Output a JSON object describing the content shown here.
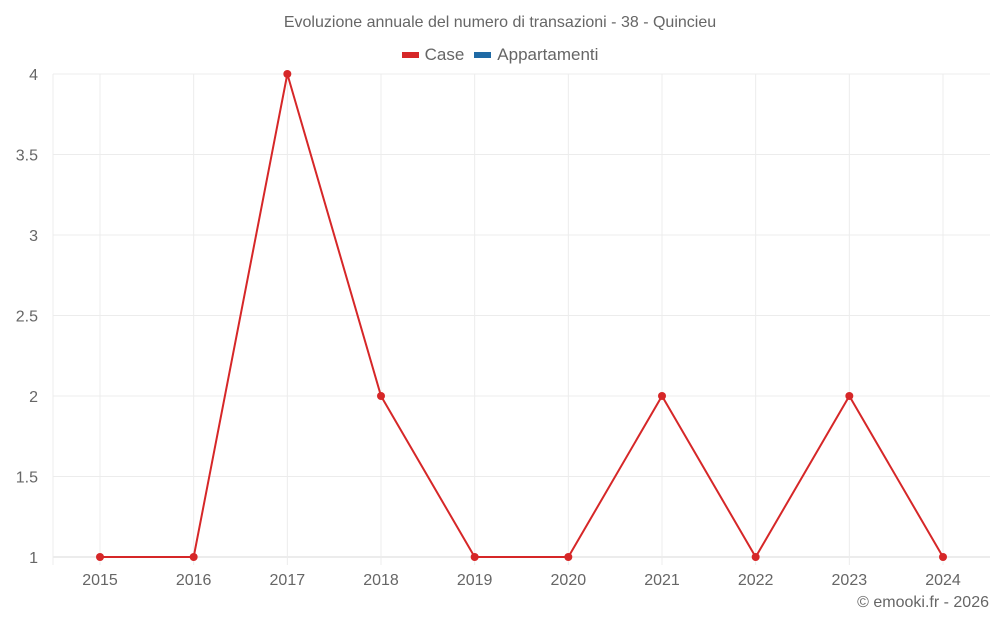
{
  "chart": {
    "title": "Evoluzione annuale del numero di transazioni - 38 - Quincieu",
    "credit": "© emooki.fr - 2026",
    "legend": [
      {
        "label": "Case",
        "color": "#d62728"
      },
      {
        "label": "Appartamenti",
        "color": "#1f6aa5"
      }
    ]
  },
  "chart_data": {
    "type": "line",
    "title": "Evoluzione annuale del numero di transazioni - 38 - Quincieu",
    "xlabel": "",
    "ylabel": "",
    "categories": [
      "2015",
      "2016",
      "2017",
      "2018",
      "2019",
      "2020",
      "2021",
      "2022",
      "2023",
      "2024"
    ],
    "series": [
      {
        "name": "Case",
        "color": "#d62728",
        "values": [
          1,
          1,
          4,
          2,
          1,
          1,
          2,
          1,
          2,
          1
        ]
      },
      {
        "name": "Appartamenti",
        "color": "#1f6aa5",
        "values": []
      }
    ],
    "yticks": [
      "1",
      "1.5",
      "2",
      "2.5",
      "3",
      "3.5",
      "4"
    ],
    "ylim": [
      1,
      4
    ],
    "grid": true,
    "legend_position": "top"
  }
}
